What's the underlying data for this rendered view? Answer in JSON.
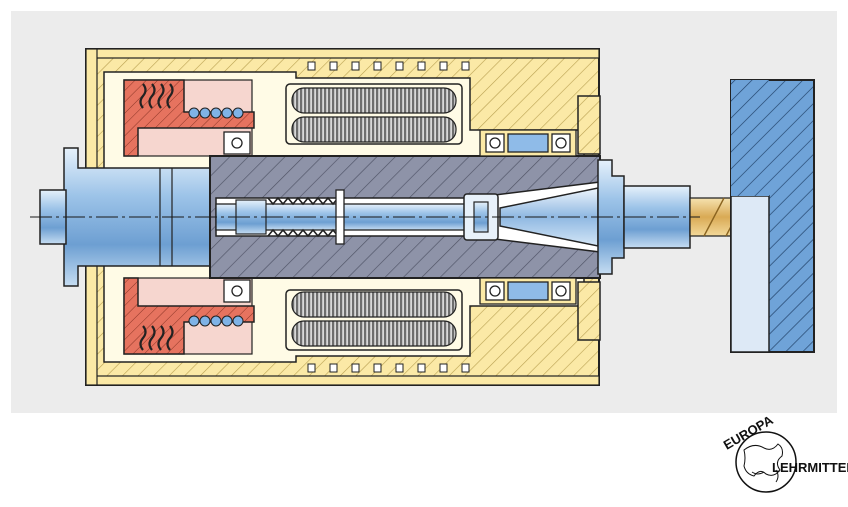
{
  "diagram": {
    "colors": {
      "panel_bg": "#ececec",
      "housing_yellow": "#fbe9a6",
      "housing_outline": "#222222",
      "spindle_gray": "#8e93a8",
      "shaft_blue": "#9cc3e8",
      "workpiece_blue": "#6fa3d8",
      "workpiece_light": "#dde9f6",
      "spring_red": "#e6735f",
      "spring_pink": "#f6d6cf",
      "tool_gold": "#e9c57a",
      "stator_gray": "#8a8a8a"
    }
  },
  "logo": {
    "top_text": "EUROPA",
    "right_text": "LEHRMITTEL",
    "icon": "globe-icon"
  }
}
